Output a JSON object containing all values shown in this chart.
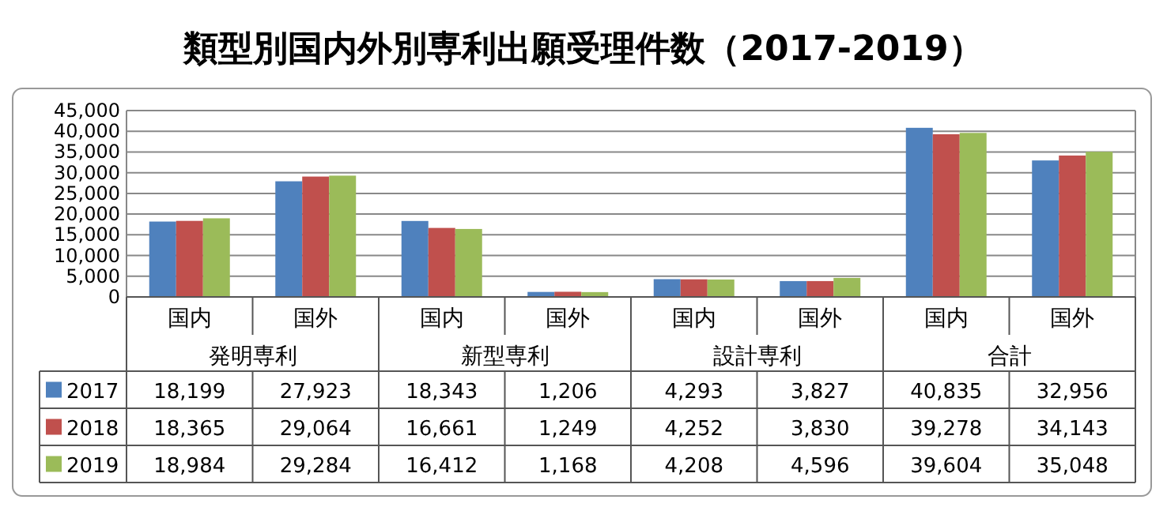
{
  "chart_data": {
    "type": "bar",
    "title": "類型別国内外別専利出願受理件数（2017-2019）",
    "categories": [
      "国内",
      "国外",
      "国内",
      "国外",
      "国内",
      "国外",
      "国内",
      "国外"
    ],
    "annotations": [
      "発明専利",
      "新型専利",
      "設計専利",
      "合計"
    ],
    "series": [
      {
        "name": "2017",
        "color": "#4f81bd",
        "values": [
          18199,
          27923,
          18343,
          1206,
          4293,
          3827,
          40835,
          32956
        ],
        "value_labels": [
          "18,199",
          "27,923",
          "18,343",
          "1,206",
          "4,293",
          "3,827",
          "40,835",
          "32,956"
        ]
      },
      {
        "name": "2018",
        "color": "#c0504d",
        "values": [
          18365,
          29064,
          16661,
          1249,
          4252,
          3830,
          39278,
          34143
        ],
        "value_labels": [
          "18,365",
          "29,064",
          "16,661",
          "1,249",
          "4,252",
          "3,830",
          "39,278",
          "34,143"
        ]
      },
      {
        "name": "2019",
        "color": "#9bbb59",
        "values": [
          18984,
          29284,
          16412,
          1168,
          4208,
          4596,
          39604,
          35048
        ],
        "value_labels": [
          "18,984",
          "29,284",
          "16,412",
          "1,168",
          "4,208",
          "4,596",
          "39,604",
          "35,048"
        ]
      }
    ],
    "ylim": [
      0,
      45000
    ],
    "yticks": [
      {
        "value": 0,
        "label": "0"
      },
      {
        "value": 5000,
        "label": "5,000"
      },
      {
        "value": 10000,
        "label": "10,000"
      },
      {
        "value": 15000,
        "label": "15,000"
      },
      {
        "value": 20000,
        "label": "20,000"
      },
      {
        "value": 25000,
        "label": "25,000"
      },
      {
        "value": 30000,
        "label": "30,000"
      },
      {
        "value": 35000,
        "label": "35,000"
      },
      {
        "value": 40000,
        "label": "40,000"
      },
      {
        "value": 45000,
        "label": "45,000"
      }
    ],
    "grid": "y",
    "legend": "bottom left"
  }
}
